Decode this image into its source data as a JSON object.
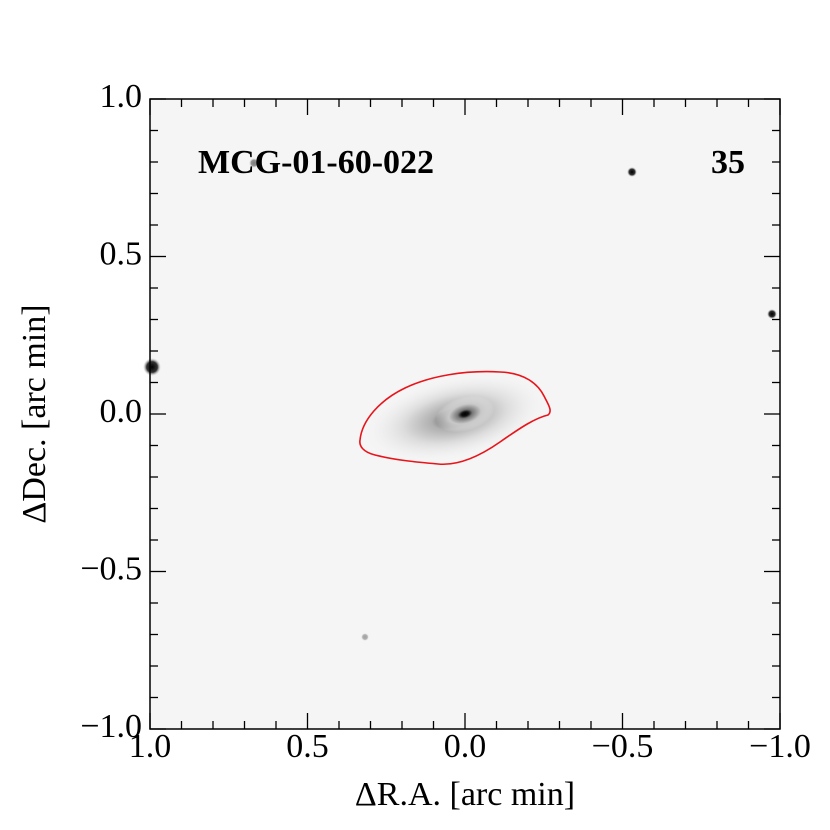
{
  "chart_data": {
    "type": "image",
    "annotations": [
      "MCG-01-60-022",
      "35"
    ],
    "x_label": "ΔR.A. [arc min]",
    "y_label": "ΔDec. [arc min]",
    "xlim": [
      1.0,
      -1.0
    ],
    "ylim": [
      -1.0,
      1.0
    ],
    "xticks": [
      {
        "value": 1.0,
        "label": "1.0"
      },
      {
        "value": 0.5,
        "label": "0.5"
      },
      {
        "value": 0.0,
        "label": "0.0"
      },
      {
        "value": -0.5,
        "label": "−0.5"
      },
      {
        "value": -1.0,
        "label": "−1.0"
      }
    ],
    "yticks": [
      {
        "value": -1.0,
        "label": "−1.0"
      },
      {
        "value": -0.5,
        "label": "−0.5"
      },
      {
        "value": 0.0,
        "label": "0.0"
      },
      {
        "value": 0.5,
        "label": "0.5"
      },
      {
        "value": 1.0,
        "label": "1.0"
      }
    ],
    "contour_color": "#e8141a"
  }
}
